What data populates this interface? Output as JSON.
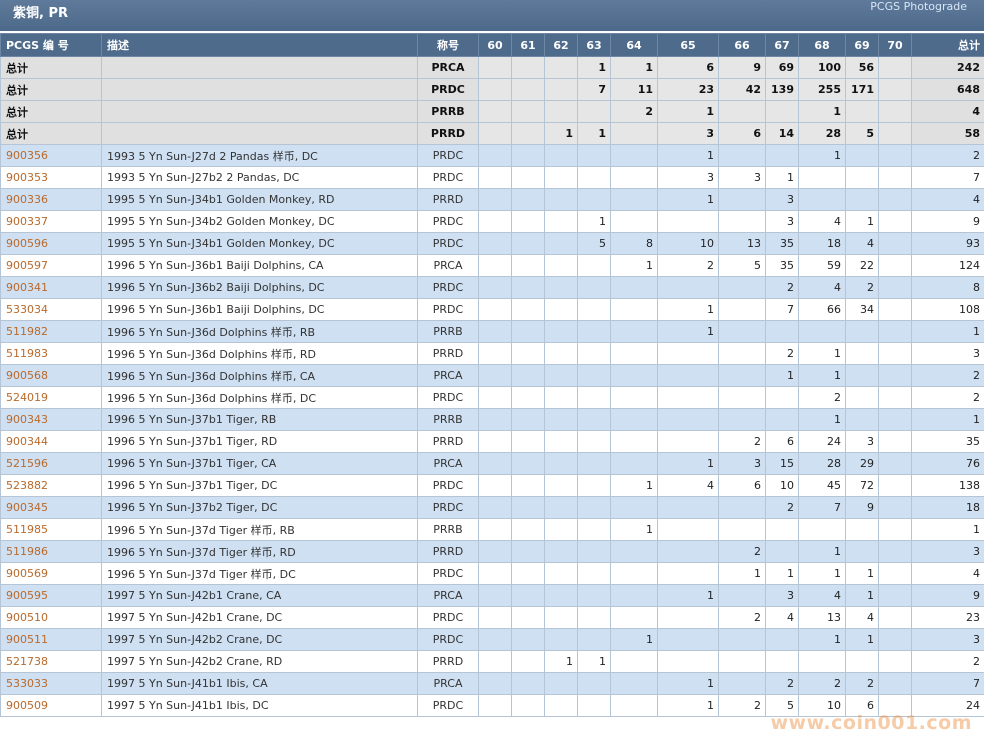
{
  "header": {
    "title": "紫铜, PR",
    "photograde_link": "PCGS Photograde"
  },
  "columns": [
    "PCGS 编 号",
    "描述",
    "称号",
    "60",
    "61",
    "62",
    "63",
    "64",
    "65",
    "66",
    "67",
    "68",
    "69",
    "70",
    "总计"
  ],
  "totals": [
    {
      "label": "总计",
      "designation": "PRCA",
      "grades": [
        "",
        "",
        "",
        "1",
        "1",
        "6",
        "9",
        "69",
        "100",
        "56",
        ""
      ],
      "total": "242"
    },
    {
      "label": "总计",
      "designation": "PRDC",
      "grades": [
        "",
        "",
        "",
        "7",
        "11",
        "23",
        "42",
        "139",
        "255",
        "171",
        ""
      ],
      "total": "648"
    },
    {
      "label": "总计",
      "designation": "PRRB",
      "grades": [
        "",
        "",
        "",
        "",
        "2",
        "1",
        "",
        "",
        "1",
        "",
        ""
      ],
      "total": "4"
    },
    {
      "label": "总计",
      "designation": "PRRD",
      "grades": [
        "",
        "",
        "1",
        "1",
        "",
        "3",
        "6",
        "14",
        "28",
        "5",
        ""
      ],
      "total": "58"
    }
  ],
  "rows": [
    {
      "pcgs": "900356",
      "desc": "1993 5 Yn Sun-J27d 2 Pandas 样币, DC",
      "designation": "PRDC",
      "grades": [
        "",
        "",
        "",
        "",
        "",
        "1",
        "",
        "",
        "1",
        "",
        ""
      ],
      "total": "2"
    },
    {
      "pcgs": "900353",
      "desc": "1993 5 Yn Sun-J27b2 2 Pandas, DC",
      "designation": "PRDC",
      "grades": [
        "",
        "",
        "",
        "",
        "",
        "3",
        "3",
        "1",
        "",
        "",
        ""
      ],
      "total": "7"
    },
    {
      "pcgs": "900336",
      "desc": "1995 5 Yn Sun-J34b1 Golden Monkey, RD",
      "designation": "PRRD",
      "grades": [
        "",
        "",
        "",
        "",
        "",
        "1",
        "",
        "3",
        "",
        "",
        ""
      ],
      "total": "4"
    },
    {
      "pcgs": "900337",
      "desc": "1995 5 Yn Sun-J34b2 Golden Monkey, DC",
      "designation": "PRDC",
      "grades": [
        "",
        "",
        "",
        "1",
        "",
        "",
        "",
        "3",
        "4",
        "1",
        ""
      ],
      "total": "9"
    },
    {
      "pcgs": "900596",
      "desc": "1995 5 Yn Sun-J34b1 Golden Monkey, DC",
      "designation": "PRDC",
      "grades": [
        "",
        "",
        "",
        "5",
        "8",
        "10",
        "13",
        "35",
        "18",
        "4",
        ""
      ],
      "total": "93"
    },
    {
      "pcgs": "900597",
      "desc": "1996 5 Yn Sun-J36b1 Baiji Dolphins, CA",
      "designation": "PRCA",
      "grades": [
        "",
        "",
        "",
        "",
        "1",
        "2",
        "5",
        "35",
        "59",
        "22",
        ""
      ],
      "total": "124"
    },
    {
      "pcgs": "900341",
      "desc": "1996 5 Yn Sun-J36b2 Baiji Dolphins, DC",
      "designation": "PRDC",
      "grades": [
        "",
        "",
        "",
        "",
        "",
        "",
        "",
        "2",
        "4",
        "2",
        ""
      ],
      "total": "8"
    },
    {
      "pcgs": "533034",
      "desc": "1996 5 Yn Sun-J36b1 Baiji Dolphins, DC",
      "designation": "PRDC",
      "grades": [
        "",
        "",
        "",
        "",
        "",
        "1",
        "",
        "7",
        "66",
        "34",
        ""
      ],
      "total": "108"
    },
    {
      "pcgs": "511982",
      "desc": "1996 5 Yn Sun-J36d Dolphins 样币, RB",
      "designation": "PRRB",
      "grades": [
        "",
        "",
        "",
        "",
        "",
        "1",
        "",
        "",
        "",
        "",
        ""
      ],
      "total": "1"
    },
    {
      "pcgs": "511983",
      "desc": "1996 5 Yn Sun-J36d Dolphins 样币, RD",
      "designation": "PRRD",
      "grades": [
        "",
        "",
        "",
        "",
        "",
        "",
        "",
        "2",
        "1",
        "",
        ""
      ],
      "total": "3"
    },
    {
      "pcgs": "900568",
      "desc": "1996 5 Yn Sun-J36d Dolphins 样币, CA",
      "designation": "PRCA",
      "grades": [
        "",
        "",
        "",
        "",
        "",
        "",
        "",
        "1",
        "1",
        "",
        ""
      ],
      "total": "2"
    },
    {
      "pcgs": "524019",
      "desc": "1996 5 Yn Sun-J36d Dolphins 样币, DC",
      "designation": "PRDC",
      "grades": [
        "",
        "",
        "",
        "",
        "",
        "",
        "",
        "",
        "2",
        "",
        ""
      ],
      "total": "2"
    },
    {
      "pcgs": "900343",
      "desc": "1996 5 Yn Sun-J37b1 Tiger, RB",
      "designation": "PRRB",
      "grades": [
        "",
        "",
        "",
        "",
        "",
        "",
        "",
        "",
        "1",
        "",
        ""
      ],
      "total": "1"
    },
    {
      "pcgs": "900344",
      "desc": "1996 5 Yn Sun-J37b1 Tiger, RD",
      "designation": "PRRD",
      "grades": [
        "",
        "",
        "",
        "",
        "",
        "",
        "2",
        "6",
        "24",
        "3",
        ""
      ],
      "total": "35"
    },
    {
      "pcgs": "521596",
      "desc": "1996 5 Yn Sun-J37b1 Tiger, CA",
      "designation": "PRCA",
      "grades": [
        "",
        "",
        "",
        "",
        "",
        "1",
        "3",
        "15",
        "28",
        "29",
        ""
      ],
      "total": "76"
    },
    {
      "pcgs": "523882",
      "desc": "1996 5 Yn Sun-J37b1 Tiger, DC",
      "designation": "PRDC",
      "grades": [
        "",
        "",
        "",
        "",
        "1",
        "4",
        "6",
        "10",
        "45",
        "72",
        ""
      ],
      "total": "138"
    },
    {
      "pcgs": "900345",
      "desc": "1996 5 Yn Sun-J37b2 Tiger, DC",
      "designation": "PRDC",
      "grades": [
        "",
        "",
        "",
        "",
        "",
        "",
        "",
        "2",
        "7",
        "9",
        ""
      ],
      "total": "18"
    },
    {
      "pcgs": "511985",
      "desc": "1996 5 Yn Sun-J37d Tiger 样币, RB",
      "designation": "PRRB",
      "grades": [
        "",
        "",
        "",
        "",
        "1",
        "",
        "",
        "",
        "",
        "",
        ""
      ],
      "total": "1"
    },
    {
      "pcgs": "511986",
      "desc": "1996 5 Yn Sun-J37d Tiger 样币, RD",
      "designation": "PRRD",
      "grades": [
        "",
        "",
        "",
        "",
        "",
        "",
        "2",
        "",
        "1",
        "",
        ""
      ],
      "total": "3"
    },
    {
      "pcgs": "900569",
      "desc": "1996 5 Yn Sun-J37d Tiger 样币, DC",
      "designation": "PRDC",
      "grades": [
        "",
        "",
        "",
        "",
        "",
        "",
        "1",
        "1",
        "1",
        "1",
        ""
      ],
      "total": "4"
    },
    {
      "pcgs": "900595",
      "desc": "1997 5 Yn Sun-J42b1 Crane, CA",
      "designation": "PRCA",
      "grades": [
        "",
        "",
        "",
        "",
        "",
        "1",
        "",
        "3",
        "4",
        "1",
        ""
      ],
      "total": "9"
    },
    {
      "pcgs": "900510",
      "desc": "1997 5 Yn Sun-J42b1 Crane, DC",
      "designation": "PRDC",
      "grades": [
        "",
        "",
        "",
        "",
        "",
        "",
        "2",
        "4",
        "13",
        "4",
        ""
      ],
      "total": "23"
    },
    {
      "pcgs": "900511",
      "desc": "1997 5 Yn Sun-J42b2 Crane, DC",
      "designation": "PRDC",
      "grades": [
        "",
        "",
        "",
        "",
        "1",
        "",
        "",
        "",
        "1",
        "1",
        ""
      ],
      "total": "3"
    },
    {
      "pcgs": "521738",
      "desc": "1997 5 Yn Sun-J42b2 Crane, RD",
      "designation": "PRRD",
      "grades": [
        "",
        "",
        "1",
        "1",
        "",
        "",
        "",
        "",
        "",
        "",
        ""
      ],
      "total": "2"
    },
    {
      "pcgs": "533033",
      "desc": "1997 5 Yn Sun-J41b1 Ibis, CA",
      "designation": "PRCA",
      "grades": [
        "",
        "",
        "",
        "",
        "",
        "1",
        "",
        "2",
        "2",
        "2",
        ""
      ],
      "total": "7"
    },
    {
      "pcgs": "900509",
      "desc": "1997 5 Yn Sun-J41b1 Ibis, DC",
      "designation": "PRDC",
      "grades": [
        "",
        "",
        "",
        "",
        "",
        "1",
        "2",
        "5",
        "10",
        "6",
        ""
      ],
      "total": "24"
    }
  ],
  "watermark": "www.coin001.com",
  "colors": {
    "header_bg": "#4f6b8c",
    "row_alt": "#cfe0f3",
    "total_bg": "#e0e0e0",
    "link": "#b86a2c"
  }
}
